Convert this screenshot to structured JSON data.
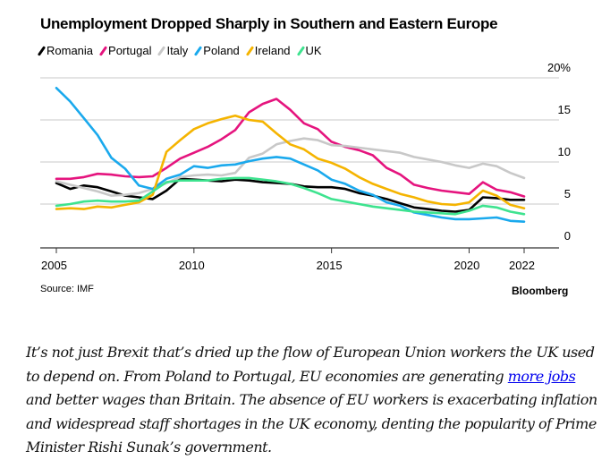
{
  "chart_data": {
    "type": "line",
    "title": "Unemployment Dropped Sharply in Southern and Eastern Europe",
    "xlabel": "",
    "ylabel": "",
    "ylim": [
      0,
      20
    ],
    "xlim": [
      2005,
      2022.8
    ],
    "y_ticks": [
      "0",
      "5",
      "10",
      "15",
      "20%"
    ],
    "x_ticks": [
      "2005",
      "2010",
      "2015",
      "2020",
      "2022"
    ],
    "grid": true,
    "legend_position": "top-left",
    "x": [
      2005,
      2005.5,
      2006,
      2006.5,
      2007,
      2007.5,
      2008,
      2008.5,
      2009,
      2009.5,
      2010,
      2010.5,
      2011,
      2011.5,
      2012,
      2012.5,
      2013,
      2013.5,
      2014,
      2014.5,
      2015,
      2015.5,
      2016,
      2016.5,
      2017,
      2017.5,
      2018,
      2018.5,
      2019,
      2019.5,
      2020,
      2020.5,
      2021,
      2021.5,
      2022,
      2022.5
    ],
    "series": [
      {
        "name": "Romania",
        "color": "#000000",
        "values": [
          7.5,
          6.8,
          7.2,
          7.0,
          6.5,
          6.0,
          5.8,
          5.6,
          6.6,
          8.0,
          7.9,
          7.8,
          7.7,
          7.9,
          7.8,
          7.6,
          7.5,
          7.4,
          7.1,
          7.0,
          7.0,
          6.8,
          6.3,
          6.0,
          5.6,
          5.1,
          4.6,
          4.4,
          4.2,
          4.1,
          4.3,
          5.8,
          5.7,
          5.5,
          5.5,
          5.5
        ]
      },
      {
        "name": "Portugal",
        "color": "#e5147e",
        "values": [
          8.0,
          8.0,
          8.2,
          8.6,
          8.5,
          8.3,
          8.2,
          8.3,
          9.3,
          10.4,
          11.1,
          11.8,
          12.7,
          13.8,
          15.9,
          16.9,
          17.5,
          16.2,
          14.6,
          13.9,
          12.4,
          11.8,
          11.4,
          10.8,
          9.3,
          8.5,
          7.3,
          6.9,
          6.6,
          6.4,
          6.2,
          7.6,
          6.7,
          6.4,
          5.9,
          6.1
        ]
      },
      {
        "name": "Italy",
        "color": "#c8c8c8",
        "values": [
          7.7,
          7.3,
          6.9,
          6.5,
          6.0,
          6.1,
          6.3,
          6.8,
          7.5,
          8.2,
          8.4,
          8.5,
          8.4,
          8.7,
          10.5,
          11.0,
          12.1,
          12.5,
          12.8,
          12.6,
          12.0,
          11.9,
          11.7,
          11.5,
          11.3,
          11.1,
          10.6,
          10.3,
          10.0,
          9.6,
          9.3,
          9.8,
          9.5,
          8.7,
          8.1,
          7.8
        ]
      },
      {
        "name": "Poland",
        "color": "#1aa9ed",
        "values": [
          18.8,
          17.2,
          15.2,
          13.2,
          10.5,
          9.2,
          7.2,
          6.8,
          8.0,
          8.5,
          9.5,
          9.3,
          9.6,
          9.7,
          10.1,
          10.4,
          10.6,
          10.4,
          9.7,
          9.0,
          7.9,
          7.4,
          6.6,
          6.1,
          5.2,
          4.8,
          4.0,
          3.7,
          3.4,
          3.2,
          3.2,
          3.3,
          3.4,
          3.0,
          2.9,
          2.8
        ]
      },
      {
        "name": "Ireland",
        "color": "#f5b400",
        "values": [
          4.4,
          4.5,
          4.4,
          4.7,
          4.6,
          4.9,
          5.2,
          6.1,
          11.2,
          12.6,
          13.9,
          14.6,
          15.1,
          15.5,
          15.0,
          14.8,
          13.4,
          12.1,
          11.5,
          10.4,
          9.9,
          9.2,
          8.2,
          7.4,
          6.8,
          6.2,
          5.8,
          5.3,
          5.0,
          4.9,
          5.2,
          6.6,
          6.0,
          4.9,
          4.5,
          4.2
        ]
      },
      {
        "name": "UK",
        "color": "#3ee38f",
        "values": [
          4.8,
          5.0,
          5.3,
          5.4,
          5.3,
          5.3,
          5.4,
          6.5,
          7.6,
          7.8,
          7.8,
          7.8,
          8.0,
          8.1,
          8.1,
          7.9,
          7.7,
          7.4,
          6.9,
          6.3,
          5.6,
          5.3,
          5.0,
          4.7,
          4.5,
          4.3,
          4.1,
          4.0,
          3.9,
          3.8,
          4.2,
          4.8,
          4.6,
          4.1,
          3.8,
          3.8
        ]
      }
    ]
  },
  "footer": {
    "source": "Source: IMF",
    "brand": "Bloomberg"
  },
  "article": {
    "text_before_link": "It’s not just Brexit that’s dried up the flow of European Union workers the UK used to depend on. From Poland to Portugal, EU economies are generating ",
    "link_text": "more jobs",
    "text_after_link": " and better wages than Britain. The absence of EU workers is exacerbating inflation and widespread staff shortages in the UK economy, denting the popularity of Prime Minister Rishi Sunak’s government."
  }
}
